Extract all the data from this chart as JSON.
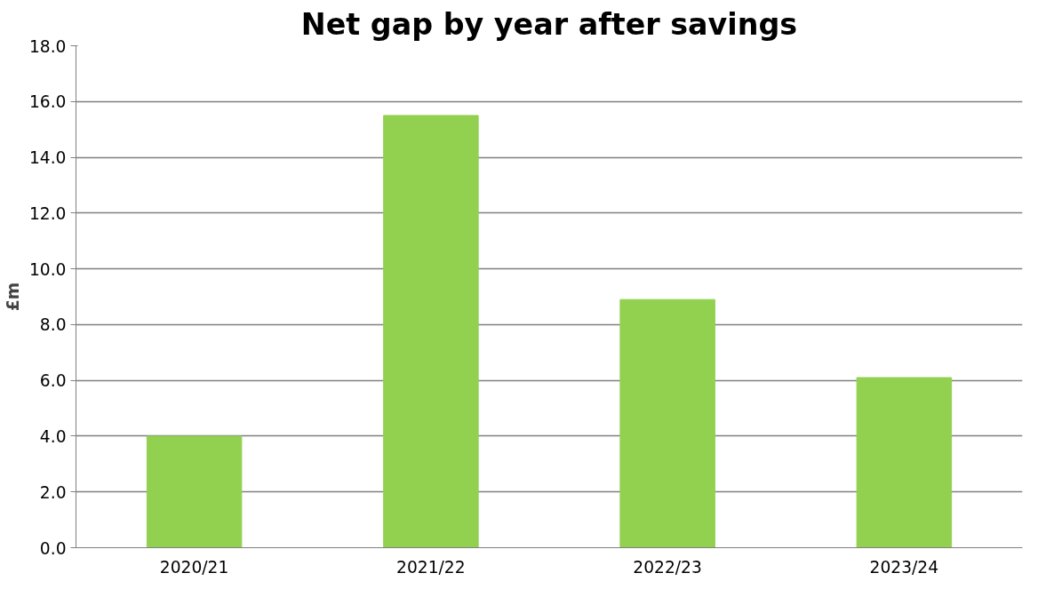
{
  "chart_data": {
    "type": "bar",
    "title": "Net gap by year after savings",
    "ylabel": "£m",
    "categories": [
      "2020/21",
      "2021/22",
      "2022/23",
      "2023/24"
    ],
    "values": [
      4.0,
      15.5,
      8.9,
      6.1
    ],
    "color": "#92d050",
    "ylim": [
      0,
      18
    ],
    "yticks": [
      {
        "value": 0,
        "label": "0.0"
      },
      {
        "value": 2,
        "label": "2.0"
      },
      {
        "value": 4,
        "label": "4.0"
      },
      {
        "value": 6,
        "label": "6.0"
      },
      {
        "value": 8,
        "label": "8.0"
      },
      {
        "value": 10,
        "label": "10.0"
      },
      {
        "value": 12,
        "label": "12.0"
      },
      {
        "value": 14,
        "label": "14.0"
      },
      {
        "value": 16,
        "label": "16.0"
      },
      {
        "value": 18,
        "label": "18.0"
      }
    ],
    "grid": "y"
  }
}
